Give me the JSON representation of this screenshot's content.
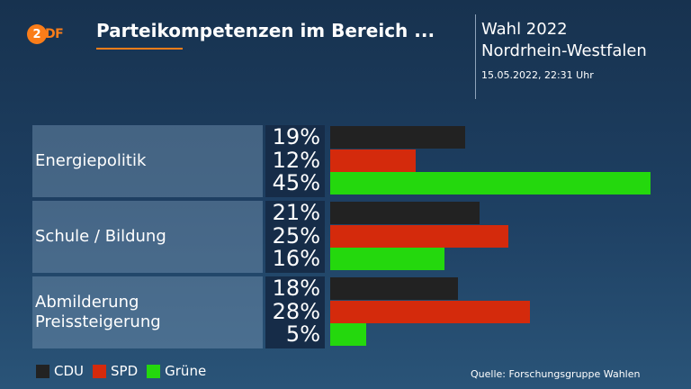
{
  "header": {
    "logo_text": "2DF",
    "title": "Parteikompetenzen im Bereich ...",
    "election_line1": "Wahl 2022",
    "election_line2": "Nordrhein-Westfalen",
    "timestamp": "15.05.2022, 22:31 Uhr"
  },
  "colors": {
    "CDU": "#222222",
    "SPD": "#d42a0c",
    "Grüne": "#24d80d",
    "accent": "#fa7d19"
  },
  "chart_data": {
    "type": "bar",
    "orientation": "horizontal",
    "categories": [
      "Energiepolitik",
      "Schule / Bildung",
      "Abmilderung Preissteigerung"
    ],
    "category_lines": [
      [
        "Energiepolitik"
      ],
      [
        "Schule / Bildung"
      ],
      [
        "Abmilderung",
        "Preissteigerung"
      ]
    ],
    "series": [
      {
        "name": "CDU",
        "values": [
          19,
          21,
          18
        ],
        "labels": [
          "19%",
          "21%",
          "18%"
        ]
      },
      {
        "name": "SPD",
        "values": [
          12,
          25,
          28
        ],
        "labels": [
          "12%",
          "25%",
          "28%"
        ]
      },
      {
        "name": "Grüne",
        "values": [
          45,
          16,
          5
        ],
        "labels": [
          "45%",
          "16%",
          "5%"
        ]
      }
    ],
    "unit": "%",
    "legend_position": "bottom-left"
  },
  "legend": [
    "CDU",
    "SPD",
    "Grüne"
  ],
  "source": "Quelle: Forschungsgruppe Wahlen"
}
